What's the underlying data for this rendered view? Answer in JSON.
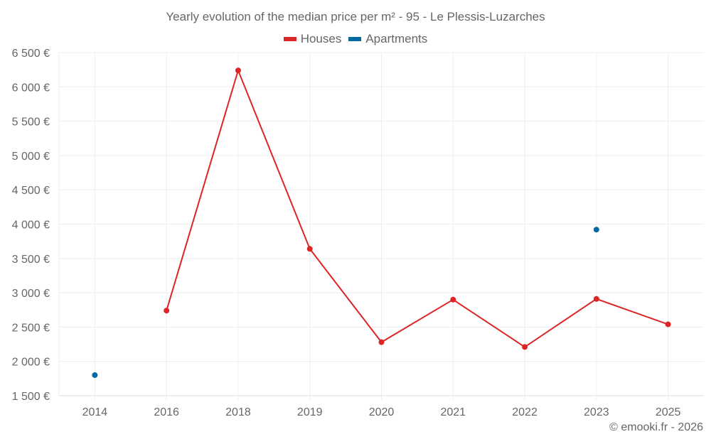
{
  "chart_data": {
    "type": "line",
    "title": "Yearly evolution of the median price per m² - 95 - Le Plessis-Luzarches",
    "xlabel": "",
    "ylabel": "",
    "categories": [
      "2014",
      "2016",
      "2018",
      "2019",
      "2020",
      "2021",
      "2022",
      "2023",
      "2025"
    ],
    "series": [
      {
        "name": "Houses",
        "color": "#dc2626",
        "values": [
          null,
          2740,
          6240,
          3640,
          2280,
          2900,
          2210,
          2910,
          2540
        ]
      },
      {
        "name": "Apartments",
        "color": "#0369a1",
        "values": [
          1800,
          null,
          null,
          null,
          null,
          null,
          null,
          3920,
          null
        ]
      }
    ],
    "yticks": [
      "1 500 €",
      "2 000 €",
      "2 500 €",
      "3 000 €",
      "3 500 €",
      "4 000 €",
      "4 500 €",
      "5 000 €",
      "5 500 €",
      "6 000 €",
      "6 500 €"
    ],
    "ylim": [
      1500,
      6500
    ],
    "grid": true,
    "legend_position": "top"
  },
  "header": {
    "title": "Yearly evolution of the median price per m² - 95 - Le Plessis-Luzarches"
  },
  "legend": {
    "items": [
      {
        "label": "Houses",
        "color": "#dc2626"
      },
      {
        "label": "Apartments",
        "color": "#0369a1"
      }
    ]
  },
  "footer": {
    "credit": "© emooki.fr - 2026"
  }
}
